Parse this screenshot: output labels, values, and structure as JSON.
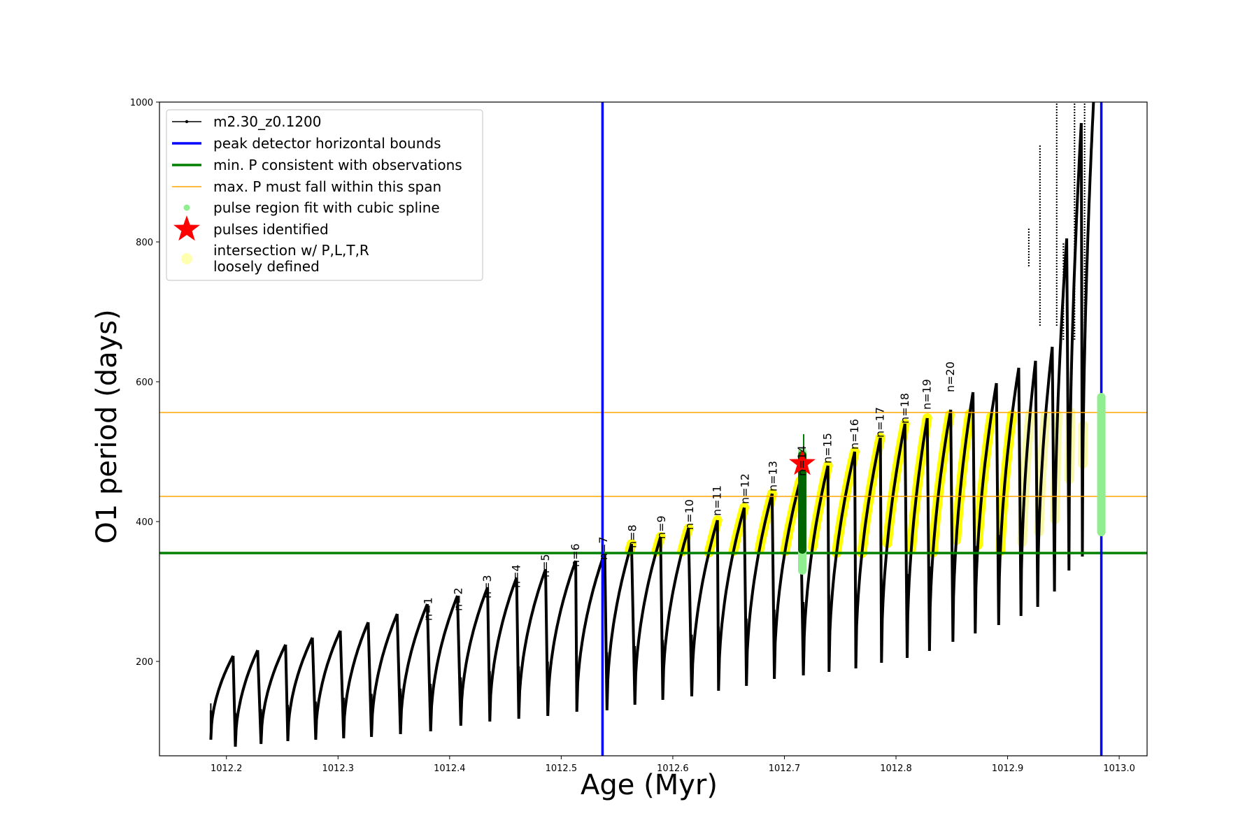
{
  "chart_data": {
    "type": "scatter",
    "xlabel": "Age (Myr)",
    "ylabel": "O1 period (days)",
    "xlim": [
      1012.14,
      1013.025
    ],
    "ylim": [
      65,
      1000
    ],
    "xticks": [
      1012.2,
      1012.3,
      1012.4,
      1012.5,
      1012.6,
      1012.7,
      1012.8,
      1012.9,
      1013.0
    ],
    "xtick_labels": [
      "1012.2",
      "1012.3",
      "1012.4",
      "1012.5",
      "1012.6",
      "1012.7",
      "1012.8",
      "1012.9",
      "1013.0"
    ],
    "yticks": [
      200,
      400,
      600,
      800,
      1000
    ],
    "ytick_labels": [
      "200",
      "400",
      "600",
      "800",
      "1000"
    ],
    "legend": {
      "position": "upper-left",
      "entries": [
        {
          "label": "m2.30_z0.1200",
          "style": "line-marker",
          "color": "#000000"
        },
        {
          "label": "peak detector horizontal bounds",
          "style": "line",
          "color": "#0000ff"
        },
        {
          "label": "min. P consistent with observations",
          "style": "line",
          "color": "#008000"
        },
        {
          "label": "max. P must fall within this span",
          "style": "line",
          "color": "#ffa500"
        },
        {
          "label": "pulse region fit with cubic spline",
          "style": "dot",
          "color": "#90ee90"
        },
        {
          "label": "pulses identified",
          "style": "star",
          "color": "#ff0000"
        },
        {
          "label": "intersection w/ P,L,T,R",
          "label2": "loosely defined",
          "style": "dot",
          "color": "#ffffb0"
        }
      ]
    },
    "vertical_lines": {
      "color": "#0000ff",
      "x": [
        1012.537,
        1012.984
      ]
    },
    "min_period_line": {
      "color": "#008000",
      "y": 355
    },
    "max_period_span": {
      "color": "#ffa500",
      "y": [
        436,
        556
      ]
    },
    "pulse_star": {
      "color": "#ff0000",
      "x": 1012.716,
      "y": 483
    },
    "series": [
      {
        "name": "m2.30_z0.1200",
        "color": "#000000",
        "pulses": [
          {
            "start": 1012.186,
            "end": 1012.206,
            "min": 88,
            "max": 208,
            "spike": 140
          },
          {
            "start": 1012.208,
            "end": 1012.228,
            "min": 78,
            "max": 216
          },
          {
            "start": 1012.231,
            "end": 1012.253,
            "min": 82,
            "max": 224
          },
          {
            "start": 1012.255,
            "end": 1012.277,
            "min": 86,
            "max": 234
          },
          {
            "start": 1012.28,
            "end": 1012.302,
            "min": 88,
            "max": 244
          },
          {
            "start": 1012.305,
            "end": 1012.327,
            "min": 90,
            "max": 256
          },
          {
            "start": 1012.33,
            "end": 1012.353,
            "min": 92,
            "max": 268
          },
          {
            "start": 1012.356,
            "end": 1012.38,
            "min": 96,
            "max": 282
          },
          {
            "start": 1012.383,
            "end": 1012.407,
            "min": 100,
            "max": 294
          },
          {
            "start": 1012.41,
            "end": 1012.434,
            "min": 108,
            "max": 306
          },
          {
            "start": 1012.436,
            "end": 1012.46,
            "min": 114,
            "max": 320
          },
          {
            "start": 1012.462,
            "end": 1012.486,
            "min": 118,
            "max": 332
          },
          {
            "start": 1012.488,
            "end": 1012.513,
            "min": 122,
            "max": 344
          },
          {
            "start": 1012.514,
            "end": 1012.539,
            "min": 128,
            "max": 356
          },
          {
            "start": 1012.541,
            "end": 1012.563,
            "min": 130,
            "max": 368
          },
          {
            "start": 1012.566,
            "end": 1012.589,
            "min": 138,
            "max": 378
          },
          {
            "start": 1012.591,
            "end": 1012.614,
            "min": 145,
            "max": 390
          },
          {
            "start": 1012.617,
            "end": 1012.64,
            "min": 150,
            "max": 402
          },
          {
            "start": 1012.641,
            "end": 1012.664,
            "min": 158,
            "max": 420
          },
          {
            "start": 1012.666,
            "end": 1012.689,
            "min": 165,
            "max": 440
          },
          {
            "start": 1012.691,
            "end": 1012.714,
            "min": 175,
            "max": 458
          },
          {
            "start": 1012.717,
            "end": 1012.739,
            "min": 180,
            "max": 480
          },
          {
            "start": 1012.74,
            "end": 1012.763,
            "min": 185,
            "max": 500
          },
          {
            "start": 1012.764,
            "end": 1012.786,
            "min": 190,
            "max": 520
          },
          {
            "start": 1012.787,
            "end": 1012.808,
            "min": 198,
            "max": 540
          },
          {
            "start": 1012.81,
            "end": 1012.828,
            "min": 205,
            "max": 548
          },
          {
            "start": 1012.83,
            "end": 1012.849,
            "min": 215,
            "max": 560
          },
          {
            "start": 1012.851,
            "end": 1012.869,
            "min": 228,
            "max": 585
          },
          {
            "start": 1012.871,
            "end": 1012.89,
            "min": 240,
            "max": 598
          },
          {
            "start": 1012.892,
            "end": 1012.91,
            "min": 252,
            "max": 620
          },
          {
            "start": 1012.912,
            "end": 1012.925,
            "min": 265,
            "max": 630
          },
          {
            "start": 1012.927,
            "end": 1012.94,
            "min": 278,
            "max": 650
          },
          {
            "start": 1012.942,
            "end": 1012.953,
            "min": 300,
            "max": 805
          },
          {
            "start": 1012.955,
            "end": 1012.966,
            "min": 330,
            "max": 970
          },
          {
            "start": 1012.967,
            "end": 1012.977,
            "min": 350,
            "max": 1000
          }
        ],
        "spikes": [
          {
            "x": 1012.929,
            "y1": 680,
            "y2": 940
          },
          {
            "x": 1012.944,
            "y1": 680,
            "y2": 1000
          },
          {
            "x": 1012.95,
            "y1": 660,
            "y2": 800
          },
          {
            "x": 1012.919,
            "y1": 765,
            "y2": 820
          },
          {
            "x": 1012.96,
            "y1": 660,
            "y2": 1000
          },
          {
            "x": 1012.969,
            "y1": 600,
            "y2": 1000
          }
        ]
      },
      {
        "name": "pulse region fit with cubic spline",
        "color": "#90ee90",
        "segments": [
          {
            "x": 1012.716,
            "y1": 330,
            "y2": 500
          },
          {
            "x": 1012.984,
            "y1": 385,
            "y2": 578
          }
        ]
      }
    ],
    "pulse_labels": [
      {
        "text": "n=1",
        "x": 1012.381,
        "y": 258
      },
      {
        "text": "n=2",
        "x": 1012.408,
        "y": 272
      },
      {
        "text": "n=3",
        "x": 1012.434,
        "y": 290
      },
      {
        "text": "n=4",
        "x": 1012.46,
        "y": 305
      },
      {
        "text": "n=5",
        "x": 1012.486,
        "y": 320
      },
      {
        "text": "n=6",
        "x": 1012.513,
        "y": 335
      },
      {
        "text": "n=7",
        "x": 1012.538,
        "y": 345
      },
      {
        "text": "n=8",
        "x": 1012.564,
        "y": 362
      },
      {
        "text": "n=9",
        "x": 1012.59,
        "y": 375
      },
      {
        "text": "n=10",
        "x": 1012.615,
        "y": 388
      },
      {
        "text": "n=11",
        "x": 1012.64,
        "y": 408
      },
      {
        "text": "n=12",
        "x": 1012.665,
        "y": 425
      },
      {
        "text": "n=13",
        "x": 1012.69,
        "y": 443
      },
      {
        "text": "n=14",
        "x": 1012.716,
        "y": 465
      },
      {
        "text": "n=15",
        "x": 1012.739,
        "y": 483
      },
      {
        "text": "n=16",
        "x": 1012.763,
        "y": 503
      },
      {
        "text": "n=17",
        "x": 1012.786,
        "y": 520
      },
      {
        "text": "n=18",
        "x": 1012.808,
        "y": 540
      },
      {
        "text": "n=19",
        "x": 1012.828,
        "y": 560
      },
      {
        "text": "n=20",
        "x": 1012.849,
        "y": 585
      }
    ]
  }
}
